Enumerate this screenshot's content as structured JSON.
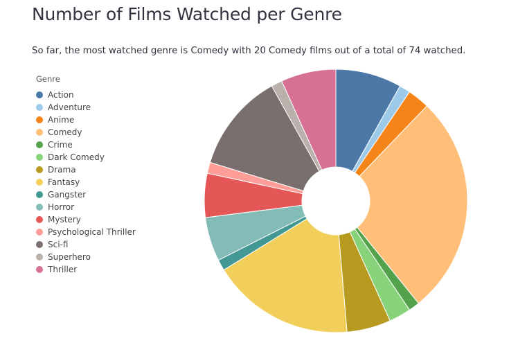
{
  "title": "Number of Films Watched per Genre",
  "subtitle": "So far, the most watched genre is Comedy with 20 Comedy films out of a total of 74 watched.",
  "chart_data": {
    "type": "pie",
    "style": "donut",
    "legend_title": "Genre",
    "legend_position": "left",
    "slices": [
      {
        "label": "Action",
        "value": 6,
        "color": "#4c78a8"
      },
      {
        "label": "Adventure",
        "value": 1,
        "color": "#9ecae9"
      },
      {
        "label": "Anime",
        "value": 2,
        "color": "#f58518"
      },
      {
        "label": "Comedy",
        "value": 20,
        "color": "#ffbf79"
      },
      {
        "label": "Crime",
        "value": 1,
        "color": "#54a24b"
      },
      {
        "label": "Dark Comedy",
        "value": 2,
        "color": "#88d27a"
      },
      {
        "label": "Drama",
        "value": 4,
        "color": "#b79a20"
      },
      {
        "label": "Fantasy",
        "value": 13,
        "color": "#f2cf5b"
      },
      {
        "label": "Gangster",
        "value": 1,
        "color": "#439894"
      },
      {
        "label": "Horror",
        "value": 4,
        "color": "#83bcb6"
      },
      {
        "label": "Mystery",
        "value": 4,
        "color": "#e45756"
      },
      {
        "label": "Psychological Thriller",
        "value": 1,
        "color": "#ff9d98"
      },
      {
        "label": "Sci-fi",
        "value": 9,
        "color": "#79706e"
      },
      {
        "label": "Superhero",
        "value": 1,
        "color": "#bab0ac"
      },
      {
        "label": "Thriller",
        "value": 5,
        "color": "#d67195"
      }
    ]
  }
}
